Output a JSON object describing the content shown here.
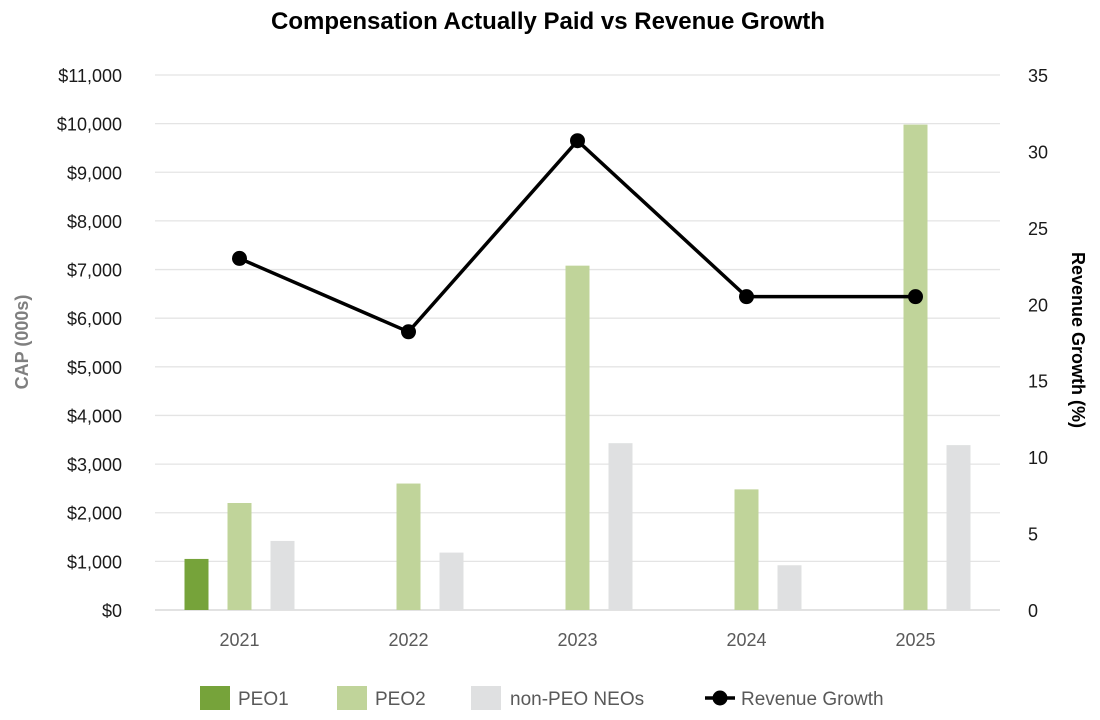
{
  "chart_data": {
    "type": "bar",
    "title": "Compensation Actually Paid vs Revenue Growth",
    "categories": [
      "2021",
      "2022",
      "2023",
      "2024",
      "2025"
    ],
    "ylabel": "CAP (000s)",
    "y2label": "Revenue Growth (%)",
    "ylim": [
      0,
      11000
    ],
    "y2lim": [
      0,
      35
    ],
    "y_ticks": [
      "$0",
      "$1,000",
      "$2,000",
      "$3,000",
      "$4,000",
      "$5,000",
      "$6,000",
      "$7,000",
      "$8,000",
      "$9,000",
      "$10,000",
      "$11,000"
    ],
    "y2_ticks": [
      "0",
      "5",
      "10",
      "15",
      "20",
      "25",
      "30",
      "35"
    ],
    "grid": true,
    "legend_position": "bottom",
    "series": [
      {
        "name": "PEO1",
        "kind": "bar",
        "axis": "left",
        "color": "#76a33a",
        "values": [
          1050,
          null,
          null,
          null,
          null
        ]
      },
      {
        "name": "PEO2",
        "kind": "bar",
        "axis": "left",
        "color": "#c0d49a",
        "values": [
          2200,
          2600,
          7080,
          2480,
          9980
        ]
      },
      {
        "name": "non-PEO NEOs",
        "kind": "bar",
        "axis": "left",
        "color": "#dfe0e1",
        "values": [
          1420,
          1180,
          3430,
          920,
          3390
        ]
      },
      {
        "name": "Revenue Growth",
        "kind": "line",
        "axis": "right",
        "color": "#000000",
        "values": [
          23.0,
          18.2,
          30.7,
          20.5,
          20.5
        ]
      }
    ]
  }
}
